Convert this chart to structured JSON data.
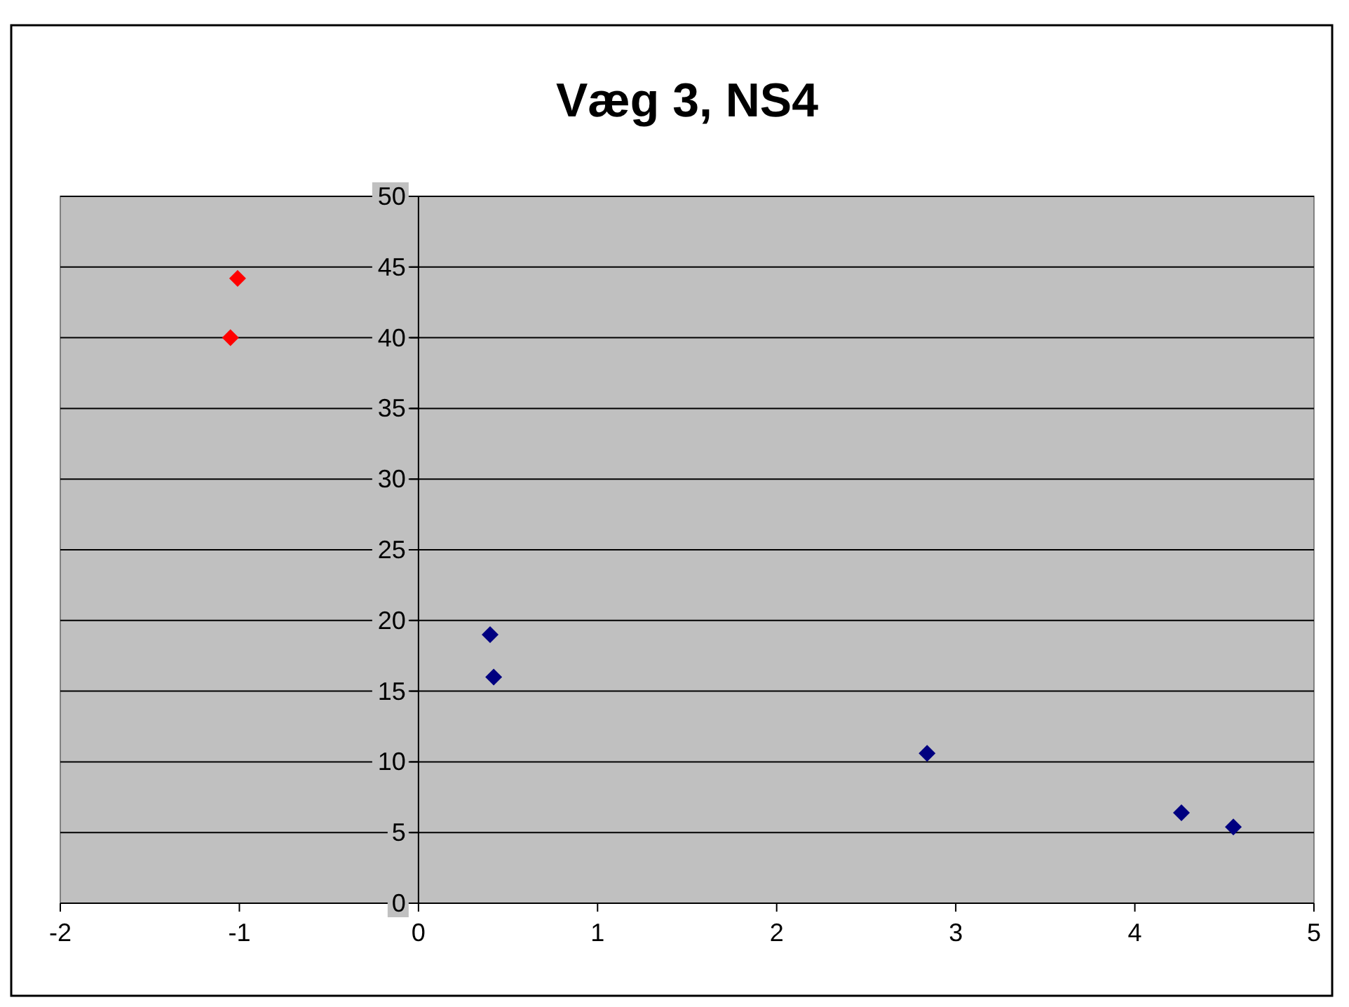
{
  "chart_data": {
    "type": "scatter",
    "title": "Væg 3, NS4",
    "marker": "diamond",
    "grid": "y",
    "xlim": [
      -2,
      5
    ],
    "xticks": [
      -2,
      -1,
      0,
      1,
      2,
      3,
      4,
      5
    ],
    "ylim": [
      0,
      50
    ],
    "yticks": [
      0,
      5,
      10,
      15,
      20,
      25,
      30,
      35,
      40,
      45,
      50
    ],
    "series": [
      {
        "color": "#ff0000",
        "x": [
          -1.05,
          -1.01
        ],
        "values": [
          40,
          44.2
        ]
      },
      {
        "color": "#000080",
        "x": [
          0.4,
          0.42,
          2.84,
          4.26,
          4.55
        ],
        "values": [
          19,
          16,
          10.6,
          6.4,
          5.4
        ]
      }
    ]
  }
}
